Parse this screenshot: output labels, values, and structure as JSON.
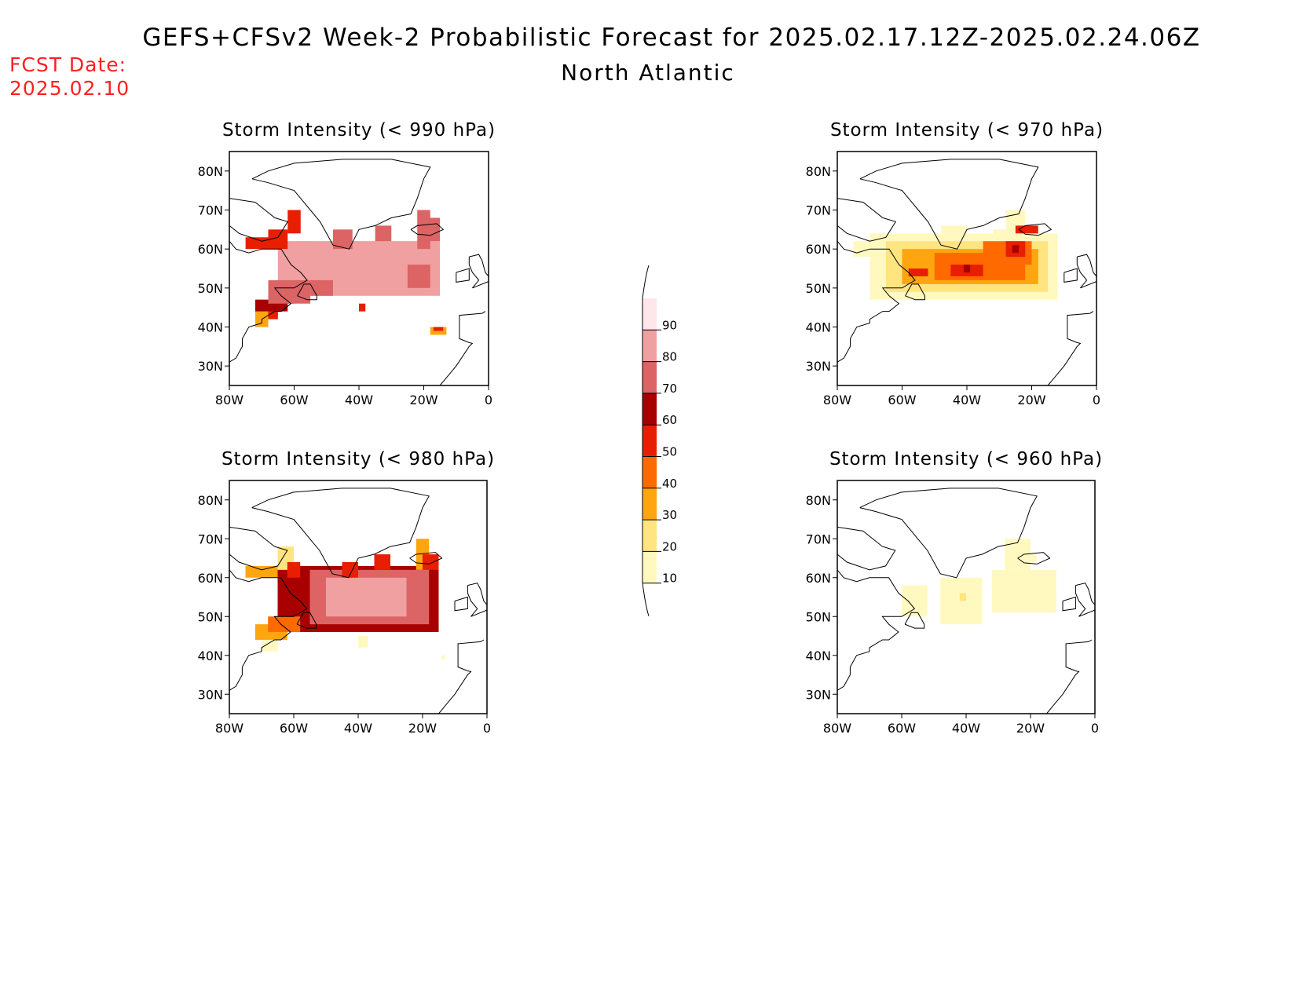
{
  "header": {
    "title": "GEFS+CFSv2 Week-2 Probabilistic Forecast for 2025.02.17.12Z-2025.02.24.06Z",
    "region": "North Atlantic",
    "fcst_label": "FCST Date:",
    "fcst_date": "2025.02.10"
  },
  "axes": {
    "lat_labels": [
      "80N",
      "70N",
      "60N",
      "50N",
      "40N",
      "30N"
    ],
    "lat_values": [
      80,
      70,
      60,
      50,
      40,
      30
    ],
    "lon_labels": [
      "80W",
      "60W",
      "40W",
      "20W",
      "0"
    ],
    "lon_values": [
      -80,
      -60,
      -40,
      -20,
      0
    ],
    "lon_range": [
      -80,
      0
    ],
    "lat_range": [
      25,
      85
    ]
  },
  "legend": {
    "levels": [
      10,
      20,
      30,
      40,
      50,
      60,
      70,
      80,
      90
    ],
    "labels": [
      "10",
      "20",
      "30",
      "40",
      "50",
      "60",
      "70",
      "80",
      "90"
    ],
    "colors": [
      "#fff9c0",
      "#ffe480",
      "#ffa510",
      "#ff6a00",
      "#e81e00",
      "#a80000",
      "#dc6464",
      "#f0a0a0",
      "#ffe6ea"
    ]
  },
  "panels": [
    {
      "id": "p990",
      "title": "Storm Intensity (< 990 hPa)",
      "cells": [
        [
          [
            -65,
            -55,
            50,
            62,
            8
          ]
        ],
        [
          [
            -55,
            -20,
            48,
            62,
            9
          ],
          [
            -45,
            -25,
            50,
            60,
            9
          ],
          [
            -65,
            -15,
            48,
            62,
            8
          ],
          [
            -60,
            -20,
            55,
            62,
            8
          ]
        ],
        [
          [
            -75,
            -65,
            60,
            63,
            5
          ],
          [
            -62,
            -58,
            64,
            70,
            5
          ],
          [
            -68,
            -62,
            60,
            65,
            5
          ],
          [
            -72,
            -65,
            42,
            47,
            5
          ],
          [
            -65,
            -60,
            46,
            50,
            5
          ]
        ],
        [
          [
            -72,
            -62,
            44,
            47,
            6
          ],
          [
            -72,
            -68,
            40,
            44,
            3
          ],
          [
            -40,
            -38,
            44,
            46,
            5
          ]
        ],
        [
          [
            -68,
            -55,
            46,
            52,
            7
          ],
          [
            -55,
            -48,
            48,
            52,
            7
          ],
          [
            -48,
            -42,
            60,
            65,
            7
          ],
          [
            -35,
            -30,
            62,
            66,
            7
          ],
          [
            -22,
            -18,
            60,
            70,
            7
          ],
          [
            -20,
            -15,
            62,
            68,
            7
          ],
          [
            -25,
            -18,
            50,
            56,
            7
          ]
        ],
        [
          [
            -18,
            -13,
            38,
            40,
            3
          ],
          [
            -17,
            -14,
            39,
            40,
            5
          ]
        ]
      ]
    },
    {
      "id": "p980",
      "title": "Storm Intensity (< 980 hPa)",
      "cells": [
        [
          [
            -65,
            -15,
            46,
            63,
            6
          ]
        ],
        [
          [
            -55,
            -18,
            48,
            62,
            7
          ],
          [
            -50,
            -25,
            50,
            60,
            8
          ]
        ],
        [
          [
            -75,
            -65,
            60,
            63,
            3
          ],
          [
            -72,
            -62,
            44,
            48,
            3
          ],
          [
            -70,
            -65,
            41,
            44,
            1
          ],
          [
            -65,
            -60,
            62,
            68,
            2
          ],
          [
            -45,
            -40,
            60,
            64,
            5
          ],
          [
            -35,
            -30,
            62,
            66,
            5
          ]
        ],
        [
          [
            -22,
            -18,
            62,
            70,
            3
          ],
          [
            -20,
            -15,
            62,
            66,
            5
          ],
          [
            -68,
            -58,
            46,
            50,
            4
          ],
          [
            -62,
            -58,
            60,
            64,
            5
          ]
        ],
        [
          [
            -40,
            -37,
            42,
            45,
            1
          ],
          [
            -14,
            -13,
            39,
            40,
            1
          ]
        ],
        []
      ]
    },
    {
      "id": "p970",
      "title": "Storm Intensity (< 970 hPa)",
      "cells": [
        [
          [
            -70,
            -12,
            47,
            64,
            1
          ],
          [
            -75,
            -65,
            58,
            62,
            1
          ],
          [
            -48,
            -40,
            62,
            66,
            1
          ],
          [
            -32,
            -25,
            62,
            65,
            1
          ],
          [
            -28,
            -22,
            64,
            70,
            1
          ]
        ],
        [
          [
            -65,
            -15,
            49,
            62,
            2
          ]
        ],
        [
          [
            -60,
            -18,
            51,
            60,
            3
          ]
        ],
        [
          [
            -50,
            -22,
            52,
            59,
            4
          ],
          [
            -35,
            -20,
            56,
            62,
            4
          ]
        ],
        [
          [
            -45,
            -35,
            53,
            56,
            5
          ],
          [
            -28,
            -22,
            58,
            62,
            5
          ],
          [
            -58,
            -52,
            53,
            55,
            5
          ],
          [
            -25,
            -18,
            64,
            66,
            5
          ]
        ],
        [
          [
            -41,
            -39,
            54,
            56,
            6
          ],
          [
            -26,
            -24,
            59,
            61,
            6
          ]
        ]
      ]
    },
    {
      "id": "p960",
      "title": "Storm Intensity (< 960 hPa)",
      "cells": [
        [
          [
            -60,
            -52,
            50,
            58,
            1
          ],
          [
            -48,
            -35,
            48,
            60,
            1
          ],
          [
            -32,
            -12,
            51,
            62,
            1
          ],
          [
            -28,
            -20,
            62,
            70,
            1
          ],
          [
            -25,
            -18,
            64,
            66,
            1
          ]
        ],
        [
          [
            -42,
            -40,
            54,
            56,
            2
          ]
        ],
        [],
        [],
        [],
        []
      ]
    }
  ]
}
